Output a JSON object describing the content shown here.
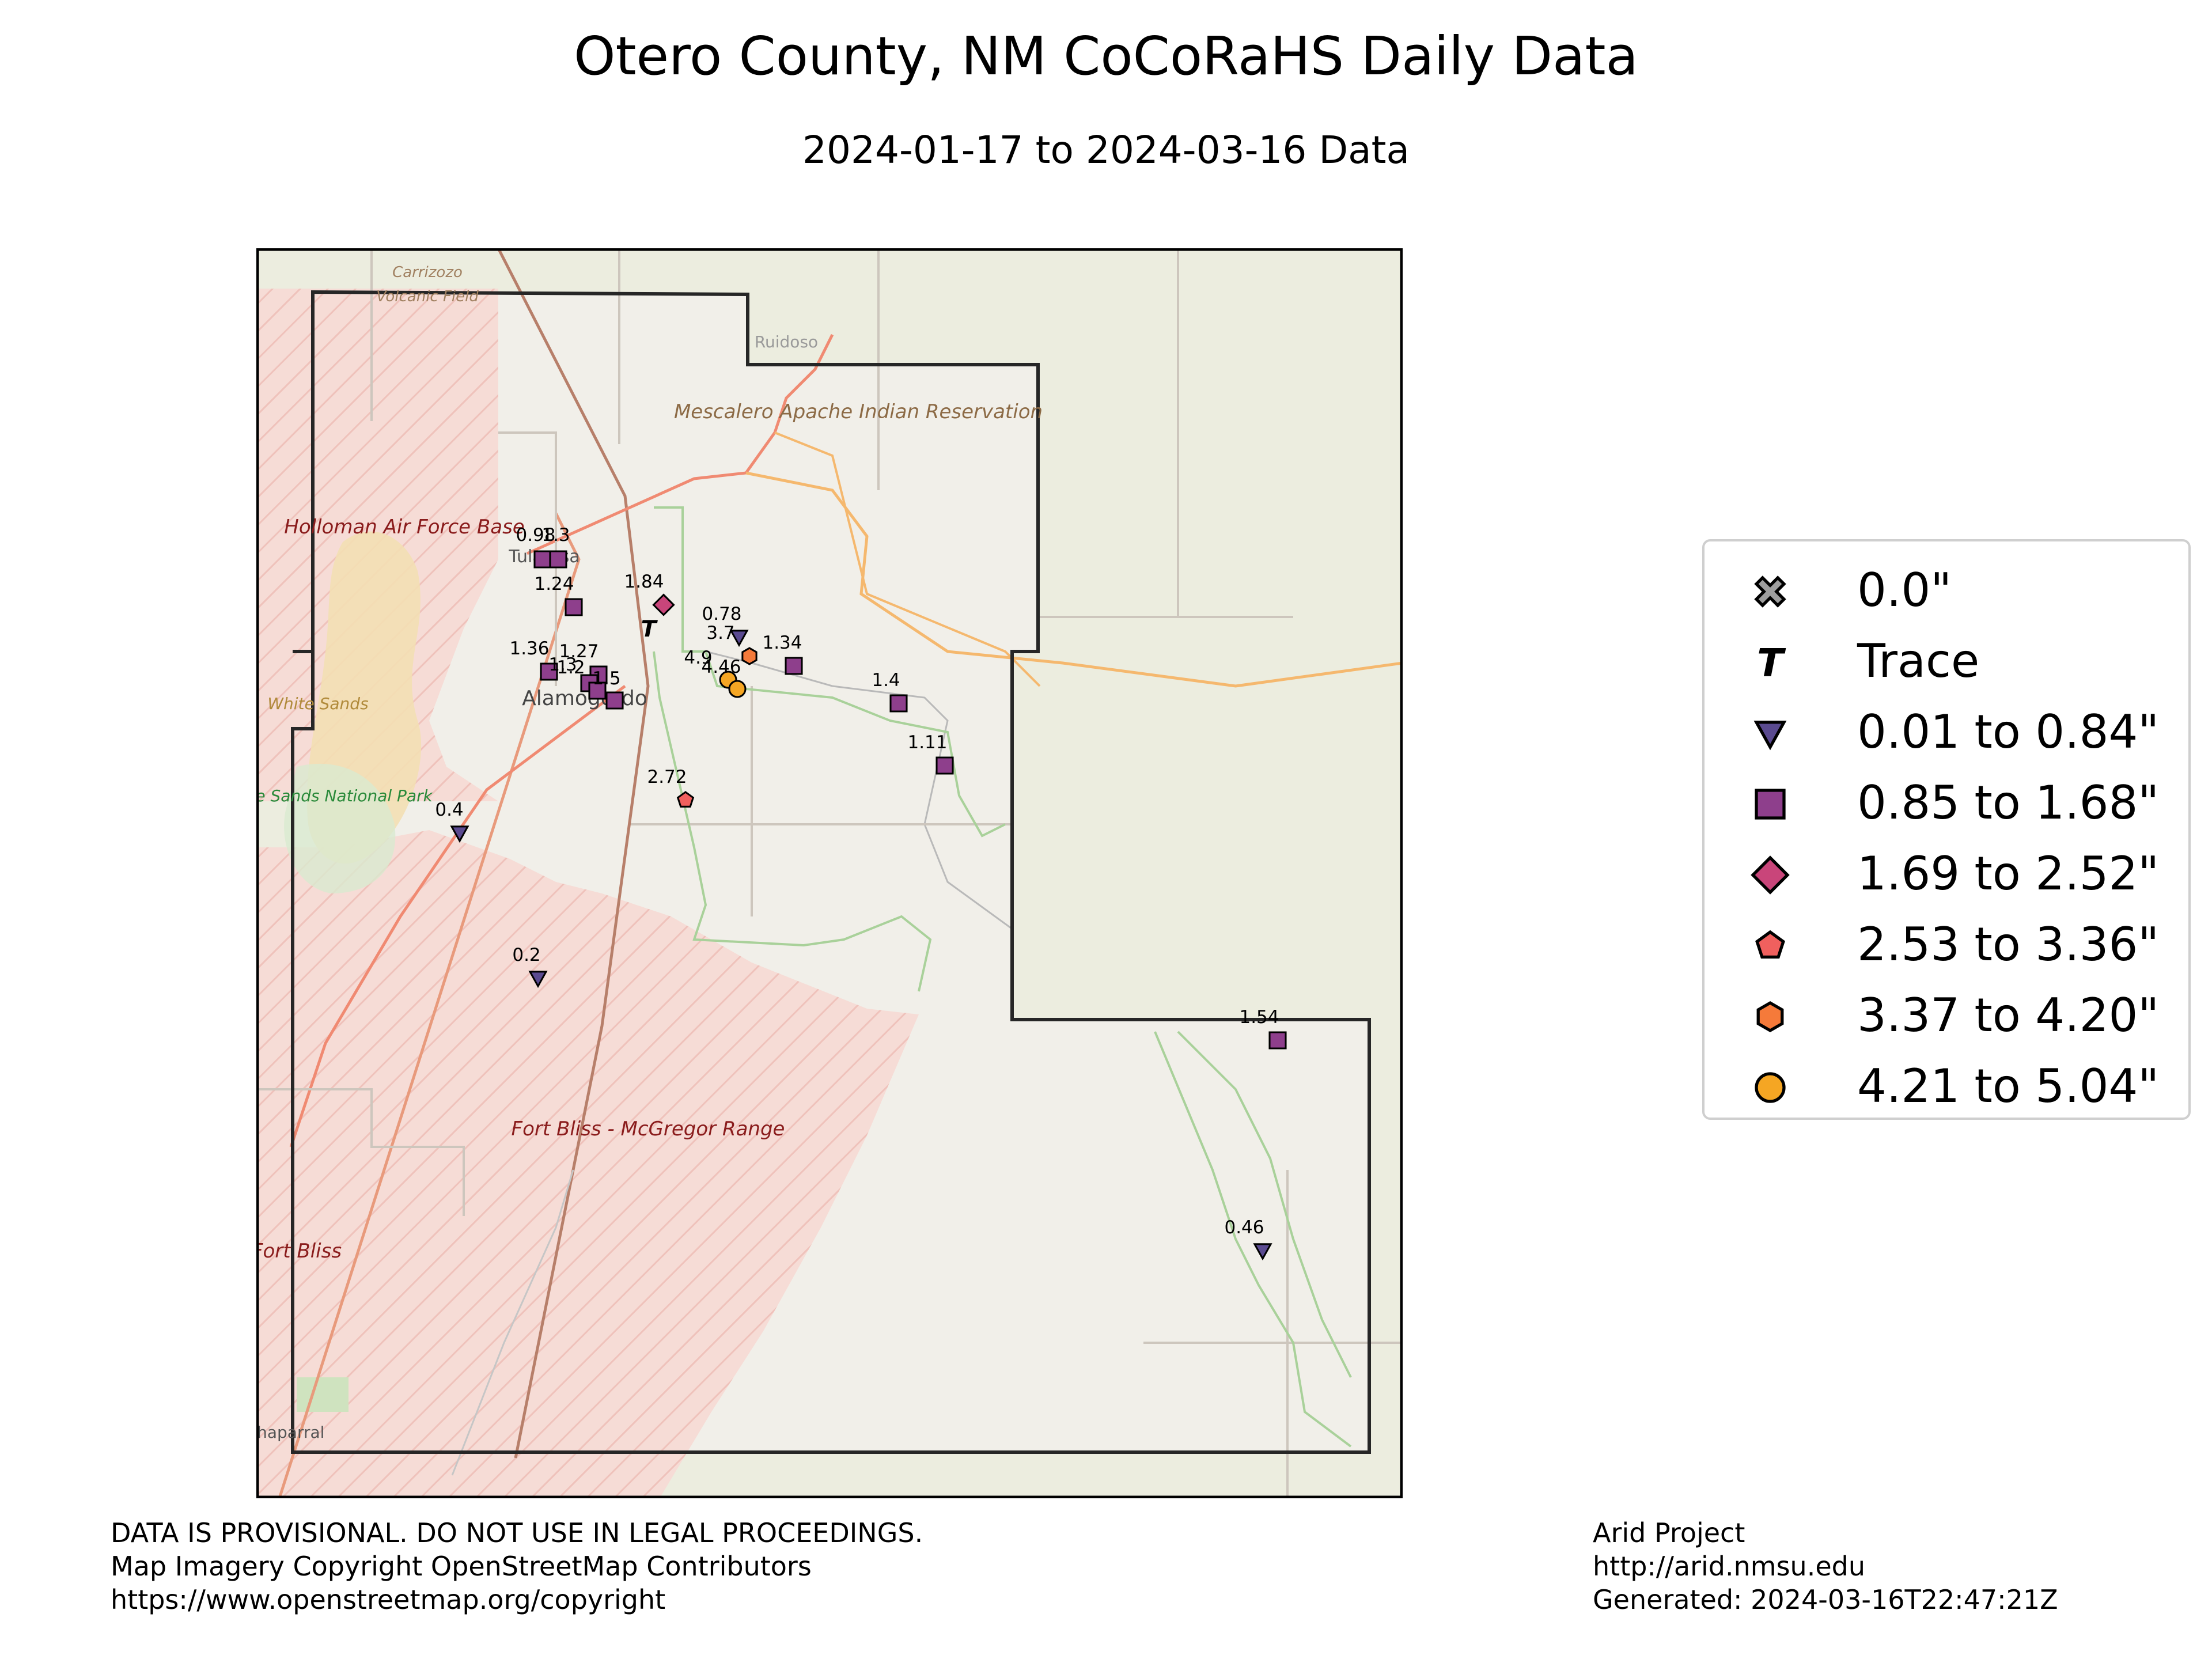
{
  "title": "Otero County, NM CoCoRaHS Daily Data",
  "subtitle": "2024-01-17 to 2024-03-16 Data",
  "map_labels": {
    "carrizozo": "Carrizozo",
    "volcanic_field": "Volcanic Field",
    "ruidoso": "Ruidoso",
    "mescalero": "Mescalero Apache Indian Reservation",
    "holloman": "Holloman Air Force Base",
    "tularosa": "Tularosa",
    "alamogordo": "Alamogordo",
    "white_sands": "White Sands",
    "white_sands_np": "White Sands National Park",
    "fort_bliss_mcgregor": "Fort Bliss - McGregor Range",
    "fort_bliss": "Fort Bliss",
    "chaparral": "Chaparral"
  },
  "stations": [
    {
      "label": "0.98",
      "category": "0.85 to 1.68\""
    },
    {
      "label": "1.3",
      "category": "0.85 to 1.68\""
    },
    {
      "label": "1.24",
      "category": "0.85 to 1.68\""
    },
    {
      "label": "1.84",
      "category": "1.69 to 2.52\""
    },
    {
      "label": "",
      "category": "Trace"
    },
    {
      "label": "1.36",
      "category": "0.85 to 1.68\""
    },
    {
      "label": "1.27",
      "category": "0.85 to 1.68\""
    },
    {
      "label": "1.3",
      "category": "0.85 to 1.68\""
    },
    {
      "label": "1.2",
      "category": "0.85 to 1.68\""
    },
    {
      "label": "1.5",
      "category": "0.85 to 1.68\""
    },
    {
      "label": "0.78",
      "category": "0.01 to 0.84\""
    },
    {
      "label": "3.7",
      "category": "3.37 to 4.20\""
    },
    {
      "label": "1.34",
      "category": "0.85 to 1.68\""
    },
    {
      "label": "4.9",
      "category": "4.21 to 5.04\""
    },
    {
      "label": "4.46",
      "category": "4.21 to 5.04\""
    },
    {
      "label": "1.4",
      "category": "0.85 to 1.68\""
    },
    {
      "label": "1.11",
      "category": "0.85 to 1.68\""
    },
    {
      "label": "2.72",
      "category": "2.53 to 3.36\""
    },
    {
      "label": "0.4",
      "category": "0.01 to 0.84\""
    },
    {
      "label": "0.2",
      "category": "0.01 to 0.84\""
    },
    {
      "label": "1.54",
      "category": "0.85 to 1.68\""
    },
    {
      "label": "0.46",
      "category": "0.01 to 0.84\""
    }
  ],
  "legend": [
    {
      "label": "0.0\"",
      "marker": "x-icon",
      "color": "#9e9e9e"
    },
    {
      "label": "Trace",
      "marker": "trace-t-icon",
      "color": "#000000"
    },
    {
      "label": "0.01 to 0.84\"",
      "marker": "triangle-down-icon",
      "color": "#5a4a90"
    },
    {
      "label": "0.85 to 1.68\"",
      "marker": "square-icon",
      "color": "#8e3f8c"
    },
    {
      "label": "1.69 to 2.52\"",
      "marker": "diamond-icon",
      "color": "#c9457a"
    },
    {
      "label": "2.53 to 3.36\"",
      "marker": "pentagon-icon",
      "color": "#f0605e"
    },
    {
      "label": "3.37 to 4.20\"",
      "marker": "hexagon-icon",
      "color": "#f57a3a"
    },
    {
      "label": "4.21 to 5.04\"",
      "marker": "circle-icon",
      "color": "#f5a623"
    }
  ],
  "footer_left": [
    "DATA IS PROVISIONAL. DO NOT USE IN LEGAL PROCEEDINGS.",
    "Map Imagery Copyright OpenStreetMap Contributors",
    "https://www.openstreetmap.org/copyright"
  ],
  "footer_right": [
    "Arid Project",
    "http://arid.nmsu.edu",
    "Generated: 2024-03-16T22:47:21Z"
  ]
}
